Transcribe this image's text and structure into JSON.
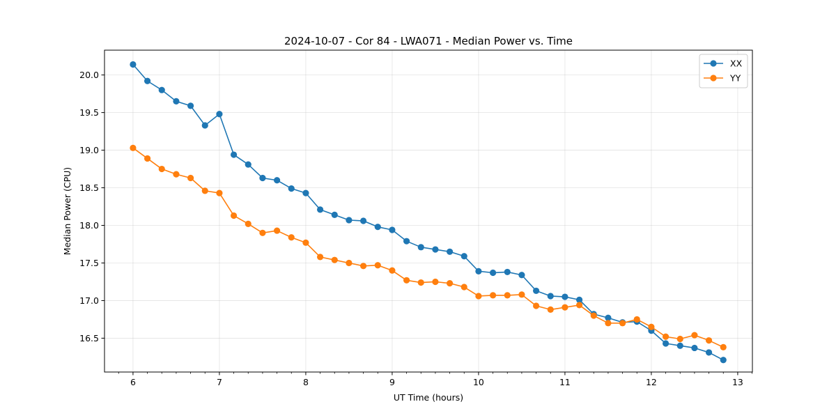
{
  "chart_data": {
    "type": "line",
    "title": "2024-10-07 - Cor 84 - LWA071 - Median Power vs. Time",
    "xlabel": "UT Time (hours)",
    "ylabel": "Median Power (CPU)",
    "xlim": [
      5.67,
      13.17
    ],
    "ylim": [
      16.05,
      20.33
    ],
    "xticks": [
      6,
      7,
      8,
      9,
      10,
      11,
      12,
      13
    ],
    "yticks": [
      16.5,
      17.0,
      17.5,
      18.0,
      18.5,
      19.0,
      19.5,
      20.0
    ],
    "ytick_labels": [
      "16.5",
      "17.0",
      "17.5",
      "18.0",
      "18.5",
      "19.0",
      "19.5",
      "20.0"
    ],
    "grid": true,
    "legend_position": "top-right",
    "x": [
      6.0,
      6.1667,
      6.3333,
      6.5,
      6.6667,
      6.8333,
      7.0,
      7.1667,
      7.3333,
      7.5,
      7.6667,
      7.8333,
      8.0,
      8.1667,
      8.3333,
      8.5,
      8.6667,
      8.8333,
      9.0,
      9.1667,
      9.3333,
      9.5,
      9.6667,
      9.8333,
      10.0,
      10.1667,
      10.3333,
      10.5,
      10.6667,
      10.8333,
      11.0,
      11.1667,
      11.3333,
      11.5,
      11.6667,
      11.8333,
      12.0,
      12.1667,
      12.3333,
      12.5,
      12.6667,
      12.8333
    ],
    "series": [
      {
        "name": "XX",
        "color": "#1f77b4",
        "values": [
          20.14,
          19.92,
          19.8,
          19.65,
          19.59,
          19.33,
          19.48,
          18.94,
          18.81,
          18.63,
          18.6,
          18.49,
          18.43,
          18.21,
          18.14,
          18.07,
          18.06,
          17.98,
          17.94,
          17.79,
          17.71,
          17.68,
          17.65,
          17.59,
          17.39,
          17.37,
          17.38,
          17.34,
          17.13,
          17.06,
          17.05,
          17.01,
          16.82,
          16.77,
          16.71,
          16.72,
          16.6,
          16.43,
          16.4,
          16.37,
          16.31,
          16.21
        ]
      },
      {
        "name": "YY",
        "color": "#ff7f0e",
        "values": [
          19.03,
          18.89,
          18.75,
          18.68,
          18.63,
          18.46,
          18.43,
          18.13,
          18.02,
          17.9,
          17.93,
          17.84,
          17.77,
          17.58,
          17.54,
          17.5,
          17.46,
          17.47,
          17.4,
          17.27,
          17.24,
          17.25,
          17.23,
          17.18,
          17.06,
          17.07,
          17.07,
          17.08,
          16.93,
          16.88,
          16.91,
          16.94,
          16.8,
          16.7,
          16.7,
          16.75,
          16.65,
          16.52,
          16.49,
          16.54,
          16.47,
          16.38
        ]
      }
    ]
  }
}
